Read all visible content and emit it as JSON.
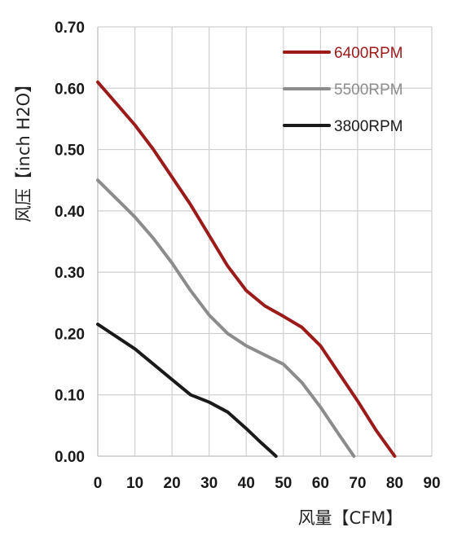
{
  "chart_data": {
    "type": "line",
    "title": "",
    "xlabel": "风量【CFM】",
    "ylabel": "风压【inch H2O】",
    "xlim": [
      0,
      90
    ],
    "ylim": [
      0,
      0.7
    ],
    "xticks": [
      "0",
      "10",
      "20",
      "30",
      "40",
      "50",
      "60",
      "70",
      "80",
      "90"
    ],
    "yticks": [
      "0.00",
      "0.10",
      "0.20",
      "0.30",
      "0.40",
      "0.50",
      "0.60",
      "0.70"
    ],
    "grid": true,
    "legend_position": "top-right",
    "series": [
      {
        "name": "6400RPM",
        "color": "#9b1a1a",
        "x": [
          0,
          5,
          10,
          15,
          20,
          25,
          30,
          35,
          40,
          45,
          50,
          55,
          60,
          65,
          70,
          75,
          80
        ],
        "y": [
          0.61,
          0.575,
          0.54,
          0.5,
          0.455,
          0.41,
          0.36,
          0.31,
          0.27,
          0.245,
          0.228,
          0.21,
          0.18,
          0.135,
          0.09,
          0.042,
          0.0
        ]
      },
      {
        "name": "5500RPM",
        "color": "#8c8c8c",
        "x": [
          0,
          5,
          10,
          15,
          20,
          25,
          30,
          35,
          40,
          45,
          50,
          55,
          60,
          65,
          69
        ],
        "y": [
          0.45,
          0.42,
          0.39,
          0.355,
          0.315,
          0.27,
          0.23,
          0.2,
          0.18,
          0.165,
          0.15,
          0.12,
          0.08,
          0.035,
          0.0
        ]
      },
      {
        "name": "3800RPM",
        "color": "#1a1a1a",
        "x": [
          0,
          5,
          10,
          15,
          20,
          25,
          30,
          35,
          40,
          44,
          48
        ],
        "y": [
          0.215,
          0.195,
          0.175,
          0.15,
          0.125,
          0.1,
          0.088,
          0.072,
          0.045,
          0.022,
          0.0
        ]
      }
    ]
  }
}
